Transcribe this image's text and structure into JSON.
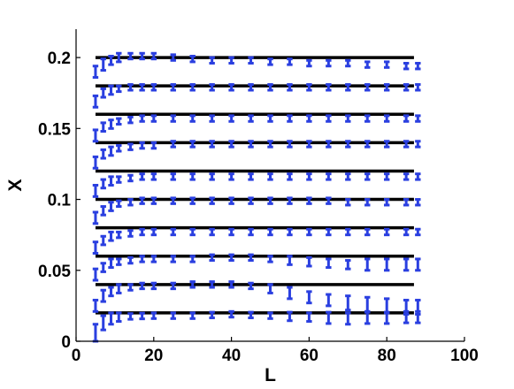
{
  "chart_data": {
    "type": "scatter",
    "title": "",
    "xlabel": "L",
    "ylabel": "X",
    "xlim": [
      0,
      100
    ],
    "ylim": [
      0,
      0.22
    ],
    "grid": false,
    "x_ticks": [
      0,
      20,
      40,
      60,
      80,
      100
    ],
    "x_tick_labels": [
      "0",
      "20",
      "40",
      "60",
      "80",
      "100"
    ],
    "y_ticks": [
      0,
      0.05,
      0.1,
      0.15,
      0.2
    ],
    "y_tick_labels": [
      "0",
      "0.05",
      "0.1",
      "0.15",
      "0.2"
    ],
    "reference_lines": {
      "color": "#000000",
      "x_range": [
        5,
        87
      ],
      "y_values": [
        0.02,
        0.04,
        0.06,
        0.08,
        0.1,
        0.12,
        0.14,
        0.16,
        0.18,
        0.2
      ]
    },
    "errorbar_color": "#2a3fe0",
    "series": [
      {
        "target": 0.02,
        "x": [
          5,
          7,
          9,
          11,
          14,
          17,
          20,
          25,
          30,
          35,
          40,
          45,
          50,
          55,
          60,
          65,
          70,
          75,
          80,
          85,
          88
        ],
        "y": [
          0.006,
          0.013,
          0.016,
          0.017,
          0.0175,
          0.0178,
          0.018,
          0.018,
          0.018,
          0.0185,
          0.019,
          0.0185,
          0.018,
          0.0175,
          0.017,
          0.0165,
          0.016,
          0.0165,
          0.0165,
          0.017,
          0.017
        ],
        "err": [
          0.006,
          0.005,
          0.004,
          0.003,
          0.002,
          0.002,
          0.002,
          0.002,
          0.002,
          0.002,
          0.002,
          0.002,
          0.002,
          0.003,
          0.003,
          0.004,
          0.004,
          0.004,
          0.004,
          0.004,
          0.004
        ]
      },
      {
        "target": 0.04,
        "x": [
          5,
          7,
          9,
          11,
          14,
          17,
          20,
          25,
          30,
          35,
          40,
          45,
          50,
          55,
          60,
          65,
          70,
          75,
          80,
          85,
          88
        ],
        "y": [
          0.025,
          0.032,
          0.035,
          0.037,
          0.038,
          0.039,
          0.039,
          0.039,
          0.04,
          0.04,
          0.04,
          0.039,
          0.037,
          0.034,
          0.031,
          0.029,
          0.027,
          0.026,
          0.025,
          0.024,
          0.024
        ],
        "err": [
          0.004,
          0.004,
          0.003,
          0.003,
          0.002,
          0.002,
          0.002,
          0.002,
          0.002,
          0.002,
          0.002,
          0.002,
          0.003,
          0.004,
          0.004,
          0.004,
          0.005,
          0.005,
          0.005,
          0.005,
          0.005
        ]
      },
      {
        "target": 0.06,
        "x": [
          5,
          7,
          9,
          11,
          14,
          17,
          20,
          25,
          30,
          35,
          40,
          45,
          50,
          55,
          60,
          65,
          70,
          75,
          80,
          85,
          88
        ],
        "y": [
          0.047,
          0.052,
          0.055,
          0.056,
          0.057,
          0.058,
          0.058,
          0.058,
          0.058,
          0.059,
          0.059,
          0.059,
          0.058,
          0.057,
          0.056,
          0.055,
          0.054,
          0.054,
          0.054,
          0.054,
          0.054
        ],
        "err": [
          0.004,
          0.003,
          0.003,
          0.002,
          0.002,
          0.002,
          0.002,
          0.002,
          0.002,
          0.002,
          0.002,
          0.002,
          0.002,
          0.003,
          0.003,
          0.003,
          0.003,
          0.004,
          0.004,
          0.004,
          0.004
        ]
      },
      {
        "target": 0.08,
        "x": [
          5,
          7,
          9,
          11,
          14,
          17,
          20,
          25,
          30,
          35,
          40,
          45,
          50,
          55,
          60,
          65,
          70,
          75,
          80,
          85,
          88
        ],
        "y": [
          0.066,
          0.071,
          0.074,
          0.075,
          0.076,
          0.077,
          0.077,
          0.077,
          0.077,
          0.077,
          0.077,
          0.077,
          0.077,
          0.077,
          0.077,
          0.077,
          0.077,
          0.077,
          0.077,
          0.077,
          0.077
        ],
        "err": [
          0.004,
          0.003,
          0.003,
          0.002,
          0.002,
          0.002,
          0.002,
          0.002,
          0.002,
          0.002,
          0.002,
          0.002,
          0.002,
          0.002,
          0.002,
          0.002,
          0.002,
          0.002,
          0.002,
          0.002,
          0.002
        ]
      },
      {
        "target": 0.1,
        "x": [
          5,
          7,
          9,
          11,
          14,
          17,
          20,
          25,
          30,
          35,
          40,
          45,
          50,
          55,
          60,
          65,
          70,
          75,
          80,
          85,
          88
        ],
        "y": [
          0.087,
          0.092,
          0.095,
          0.097,
          0.098,
          0.099,
          0.099,
          0.099,
          0.099,
          0.099,
          0.099,
          0.099,
          0.099,
          0.099,
          0.099,
          0.099,
          0.098,
          0.098,
          0.098,
          0.098,
          0.098
        ],
        "err": [
          0.004,
          0.003,
          0.003,
          0.002,
          0.002,
          0.002,
          0.002,
          0.002,
          0.002,
          0.002,
          0.002,
          0.002,
          0.002,
          0.002,
          0.002,
          0.002,
          0.002,
          0.002,
          0.002,
          0.002,
          0.002
        ]
      },
      {
        "target": 0.12,
        "x": [
          5,
          7,
          9,
          11,
          14,
          17,
          20,
          25,
          30,
          35,
          40,
          45,
          50,
          55,
          60,
          65,
          70,
          75,
          80,
          85,
          88
        ],
        "y": [
          0.106,
          0.111,
          0.113,
          0.114,
          0.115,
          0.116,
          0.116,
          0.116,
          0.116,
          0.116,
          0.116,
          0.116,
          0.116,
          0.116,
          0.116,
          0.116,
          0.116,
          0.116,
          0.116,
          0.116,
          0.116
        ],
        "err": [
          0.004,
          0.003,
          0.003,
          0.002,
          0.002,
          0.002,
          0.002,
          0.002,
          0.002,
          0.002,
          0.002,
          0.002,
          0.002,
          0.002,
          0.002,
          0.002,
          0.002,
          0.002,
          0.002,
          0.002,
          0.002
        ]
      },
      {
        "target": 0.14,
        "x": [
          5,
          7,
          9,
          11,
          14,
          17,
          20,
          25,
          30,
          35,
          40,
          45,
          50,
          55,
          60,
          65,
          70,
          75,
          80,
          85,
          88
        ],
        "y": [
          0.126,
          0.132,
          0.134,
          0.136,
          0.137,
          0.138,
          0.138,
          0.139,
          0.139,
          0.139,
          0.139,
          0.139,
          0.139,
          0.139,
          0.139,
          0.139,
          0.139,
          0.139,
          0.139,
          0.139,
          0.139
        ],
        "err": [
          0.004,
          0.003,
          0.003,
          0.002,
          0.002,
          0.002,
          0.002,
          0.002,
          0.002,
          0.002,
          0.002,
          0.002,
          0.002,
          0.002,
          0.002,
          0.002,
          0.002,
          0.002,
          0.002,
          0.002,
          0.002
        ]
      },
      {
        "target": 0.16,
        "x": [
          5,
          7,
          9,
          11,
          14,
          17,
          20,
          25,
          30,
          35,
          40,
          45,
          50,
          55,
          60,
          65,
          70,
          75,
          80,
          85,
          88
        ],
        "y": [
          0.145,
          0.151,
          0.153,
          0.155,
          0.156,
          0.157,
          0.157,
          0.157,
          0.157,
          0.157,
          0.157,
          0.157,
          0.157,
          0.157,
          0.157,
          0.157,
          0.157,
          0.157,
          0.157,
          0.157,
          0.157
        ],
        "err": [
          0.004,
          0.003,
          0.003,
          0.002,
          0.002,
          0.002,
          0.002,
          0.002,
          0.002,
          0.002,
          0.002,
          0.002,
          0.002,
          0.002,
          0.002,
          0.002,
          0.002,
          0.002,
          0.002,
          0.002,
          0.002
        ]
      },
      {
        "target": 0.18,
        "x": [
          5,
          7,
          9,
          11,
          14,
          17,
          20,
          25,
          30,
          35,
          40,
          45,
          50,
          55,
          60,
          65,
          70,
          75,
          80,
          85,
          88
        ],
        "y": [
          0.169,
          0.175,
          0.177,
          0.178,
          0.179,
          0.179,
          0.179,
          0.179,
          0.179,
          0.179,
          0.179,
          0.179,
          0.179,
          0.179,
          0.179,
          0.179,
          0.179,
          0.179,
          0.179,
          0.179,
          0.179
        ],
        "err": [
          0.004,
          0.003,
          0.003,
          0.002,
          0.002,
          0.002,
          0.002,
          0.002,
          0.002,
          0.002,
          0.002,
          0.002,
          0.002,
          0.002,
          0.002,
          0.002,
          0.002,
          0.002,
          0.002,
          0.002,
          0.002
        ]
      },
      {
        "target": 0.2,
        "x": [
          5,
          7,
          9,
          11,
          14,
          17,
          20,
          25,
          30,
          35,
          40,
          45,
          50,
          55,
          60,
          65,
          70,
          75,
          80,
          85,
          88
        ],
        "y": [
          0.19,
          0.195,
          0.198,
          0.2,
          0.201,
          0.201,
          0.201,
          0.2,
          0.199,
          0.198,
          0.198,
          0.198,
          0.197,
          0.197,
          0.196,
          0.196,
          0.196,
          0.195,
          0.195,
          0.194,
          0.194
        ],
        "err": [
          0.004,
          0.004,
          0.003,
          0.003,
          0.002,
          0.002,
          0.002,
          0.002,
          0.002,
          0.002,
          0.002,
          0.002,
          0.002,
          0.002,
          0.002,
          0.002,
          0.002,
          0.002,
          0.002,
          0.002,
          0.002
        ]
      }
    ]
  }
}
